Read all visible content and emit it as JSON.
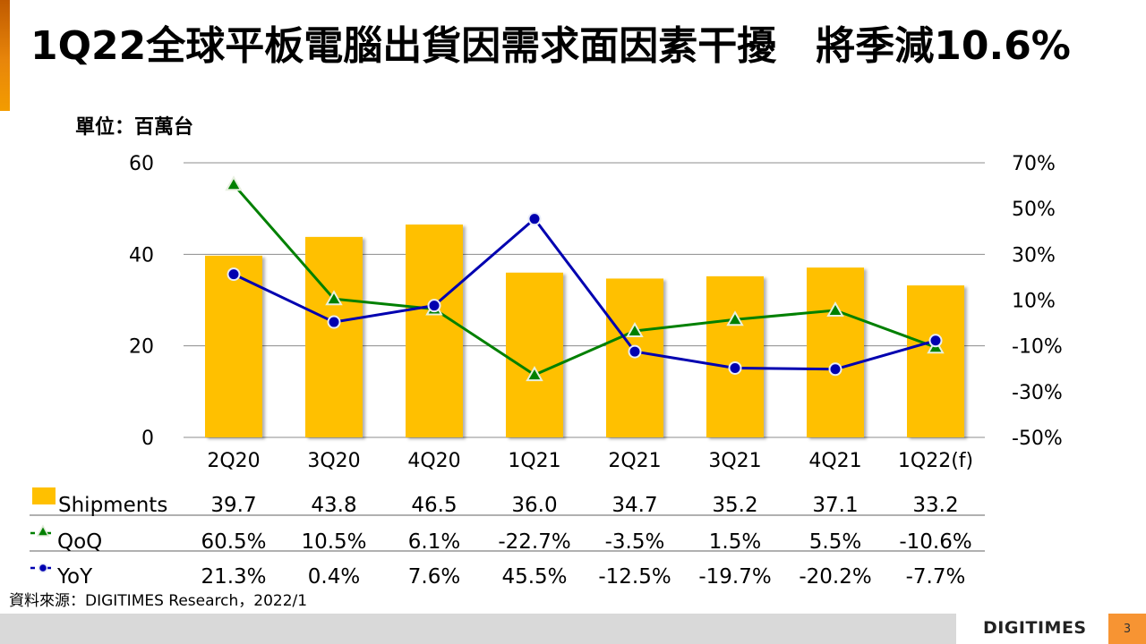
{
  "slide": {
    "title": "1Q22全球平板電腦出貨因需求面因素干擾　將季減10.6%",
    "unit_label": "單位：百萬台",
    "source": "資料來源：DIGITIMES Research，2022/1",
    "logo": "DIGITIMES",
    "page_number": "3",
    "colors": {
      "accent": "#e8860a",
      "bar": "#ffc000",
      "qoq": "#008000",
      "yoy": "#0000b0",
      "footer_bar": "#d9d9d9",
      "page_badge": "#f79433"
    }
  },
  "chart_data": {
    "type": "bar",
    "title": "1Q22全球平板電腦出貨因需求面因素干擾　將季減10.6%",
    "ylabel": "單位：百萬台",
    "categories": [
      "2Q20",
      "3Q20",
      "4Q20",
      "1Q21",
      "2Q21",
      "3Q21",
      "4Q21",
      "1Q22(f)"
    ],
    "ylim": [
      0,
      60
    ],
    "yticks": [
      "60",
      "40",
      "20",
      "0"
    ],
    "y2lim": [
      -50,
      70
    ],
    "y2ticks": [
      "70%",
      "50%",
      "30%",
      "10%",
      "-10%",
      "-30%",
      "-50%"
    ],
    "grid": true,
    "series": [
      {
        "name": "Shipments",
        "type": "bar",
        "axis": "left",
        "values": [
          39.7,
          43.8,
          46.5,
          36.0,
          34.7,
          35.2,
          37.1,
          33.2
        ],
        "labels": [
          "39.7",
          "43.8",
          "46.5",
          "36.0",
          "34.7",
          "35.2",
          "37.1",
          "33.2"
        ]
      },
      {
        "name": "QoQ",
        "type": "line",
        "marker": "triangle",
        "axis": "right",
        "values": [
          60.5,
          10.5,
          6.1,
          -22.7,
          -3.5,
          1.5,
          5.5,
          -10.6
        ],
        "labels": [
          "60.5%",
          "10.5%",
          "6.1%",
          "-22.7%",
          "-3.5%",
          "1.5%",
          "5.5%",
          "-10.6%"
        ]
      },
      {
        "name": "YoY",
        "type": "line",
        "marker": "circle",
        "axis": "right",
        "values": [
          21.3,
          0.4,
          7.6,
          45.5,
          -12.5,
          -19.7,
          -20.2,
          -7.7
        ],
        "labels": [
          "21.3%",
          "0.4%",
          "7.6%",
          "45.5%",
          "-12.5%",
          "-19.7%",
          "-20.2%",
          "-7.7%"
        ]
      }
    ],
    "legend": "data-table-below"
  }
}
